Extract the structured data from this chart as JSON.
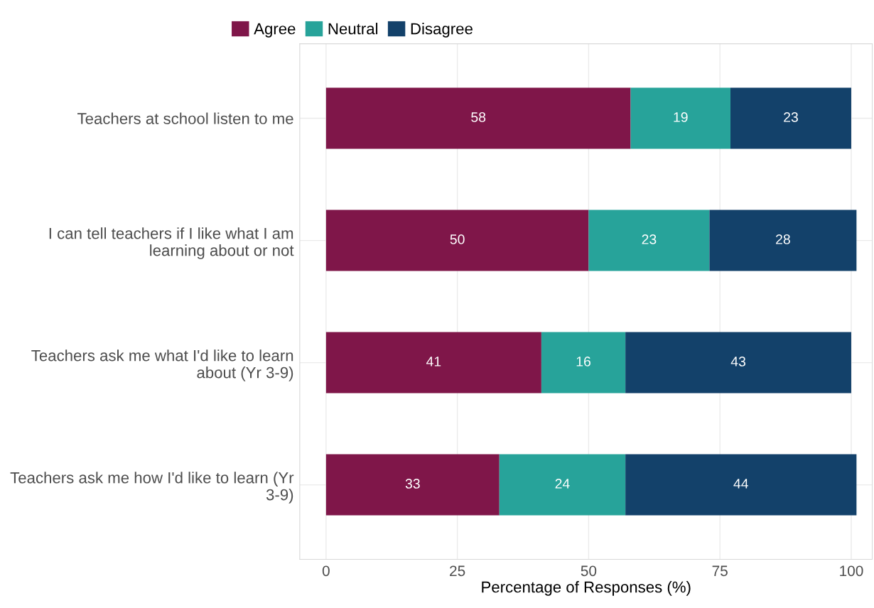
{
  "chart_data": {
    "type": "bar",
    "orientation": "horizontal",
    "stacked": true,
    "xlabel": "Percentage of Responses (%)",
    "categories": [
      "Teachers at school listen to me",
      "I can tell teachers if I like what I am learning about or not",
      "Teachers ask me what I'd like to learn about (Yr 3-9)",
      "Teachers ask me how I'd like to learn (Yr 3-9)"
    ],
    "series": [
      {
        "name": "Agree",
        "color": "#7f1649",
        "values": [
          58,
          50,
          41,
          33
        ]
      },
      {
        "name": "Neutral",
        "color": "#27a39a",
        "values": [
          19,
          23,
          16,
          24
        ]
      },
      {
        "name": "Disagree",
        "color": "#13416a",
        "values": [
          23,
          28,
          43,
          44
        ]
      }
    ],
    "xlim": [
      -5,
      104
    ],
    "xticks": [
      0,
      25,
      50,
      75,
      100
    ],
    "grid": true,
    "legend": "top left",
    "data_labels": true
  }
}
